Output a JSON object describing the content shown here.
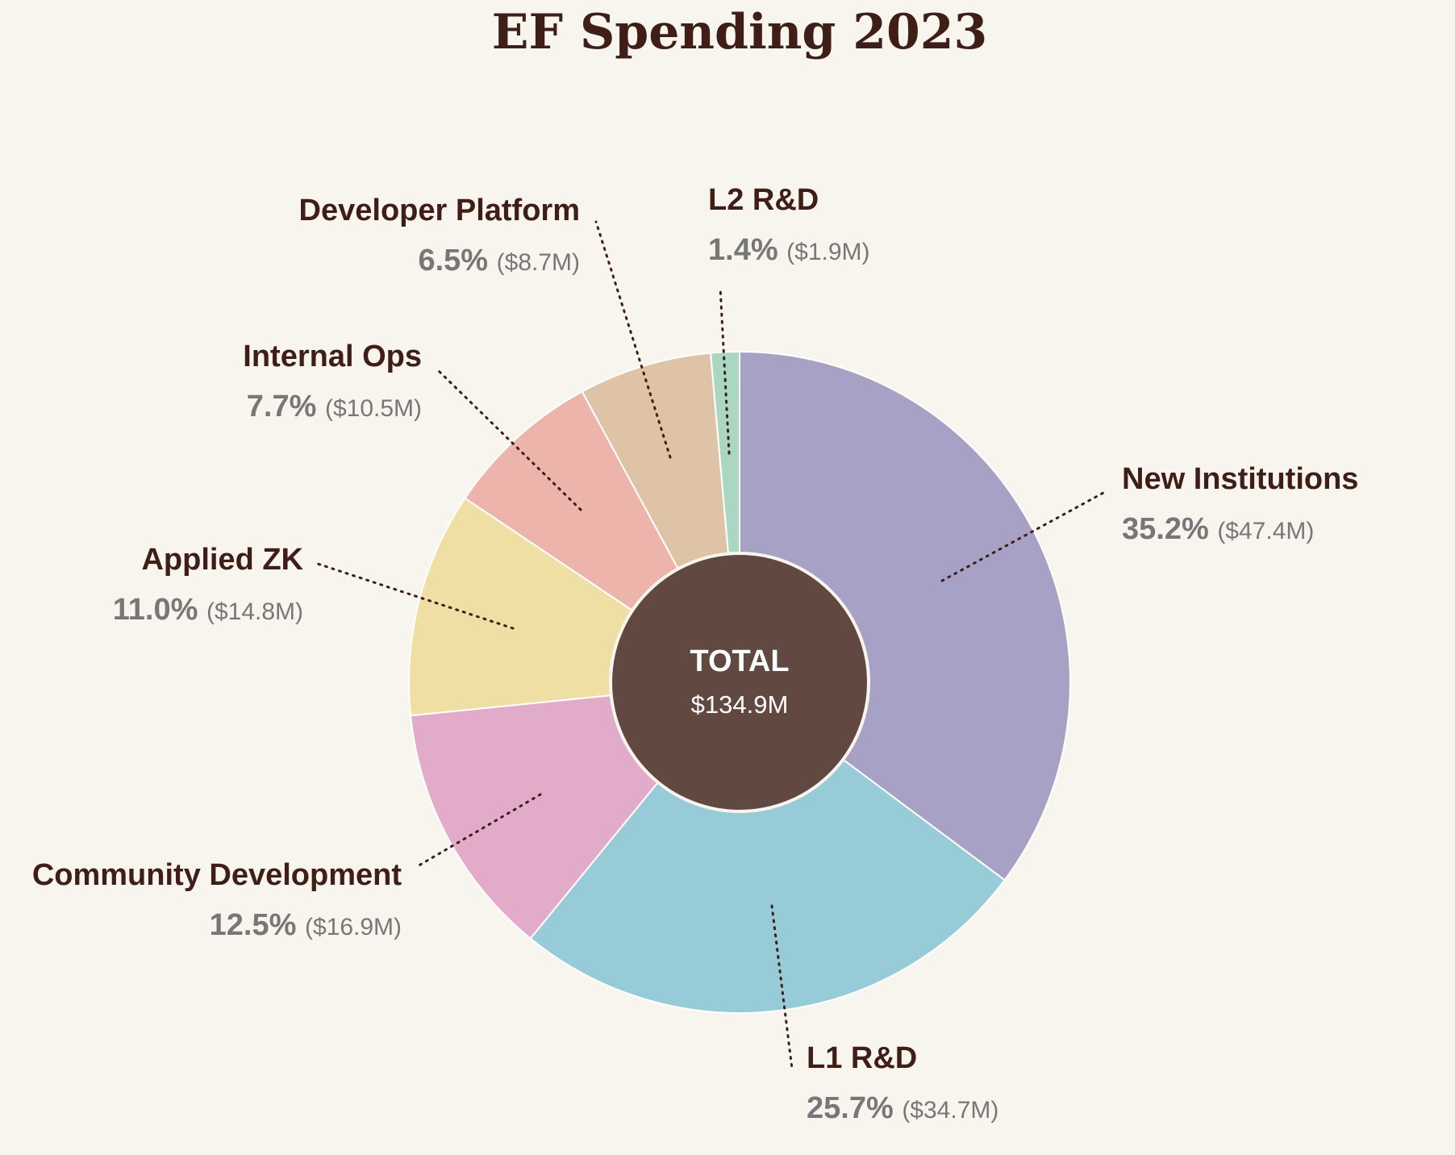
{
  "chart_data": {
    "type": "pie",
    "variant": "donut",
    "title": "EF Spending 2023",
    "center": {
      "label": "TOTAL",
      "value": "$134.9M"
    },
    "legend_placement": "labels around chart",
    "slices": [
      {
        "name": "L2 R&D",
        "percent": 1.4,
        "percent_label": "1.4%",
        "amount_label": "($1.9M)",
        "color": "#a9d7c2"
      },
      {
        "name": "New Institutions",
        "percent": 35.2,
        "percent_label": "35.2%",
        "amount_label": "($47.4M)",
        "color": "#a7a2c5"
      },
      {
        "name": "L1 R&D",
        "percent": 25.7,
        "percent_label": "25.7%",
        "amount_label": "($34.7M)",
        "color": "#96cbd7"
      },
      {
        "name": "Community Development",
        "percent": 12.5,
        "percent_label": "12.5%",
        "amount_label": "($16.9M)",
        "color": "#e2abca"
      },
      {
        "name": "Applied ZK",
        "percent": 11.0,
        "percent_label": "11.0%",
        "amount_label": "($14.8M)",
        "color": "#f0dfa4"
      },
      {
        "name": "Internal Ops",
        "percent": 7.7,
        "percent_label": "7.7%",
        "amount_label": "($10.5M)",
        "color": "#edb4ac"
      },
      {
        "name": "Developer Platform",
        "percent": 6.5,
        "percent_label": "6.5%",
        "amount_label": "($8.7M)",
        "color": "#dfc3a6"
      }
    ]
  },
  "colors": {
    "background": "#f8f5ee",
    "title": "#3e1e16",
    "center_fill": "#614840",
    "leader_line": "#3e1e16",
    "muted_text": "#777777"
  }
}
